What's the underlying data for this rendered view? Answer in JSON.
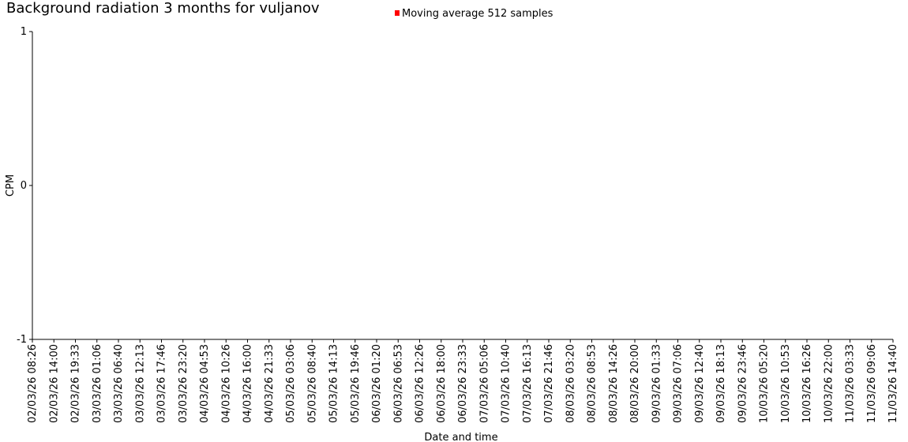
{
  "chart_data": {
    "type": "line",
    "title": "Background radiation 3 months for vuljanov",
    "xlabel": "Date and time",
    "ylabel": "CPM",
    "ylim": [
      -1,
      1
    ],
    "y_ticks": [
      "1",
      "0",
      "-1"
    ],
    "x_ticks": [
      "02/03/26 08:26",
      "02/03/26 14:00",
      "02/03/26 19:33",
      "03/03/26 01:06",
      "03/03/26 06:40",
      "03/03/26 12:13",
      "03/03/26 17:46",
      "03/03/26 23:20",
      "04/03/26 04:53",
      "04/03/26 10:26",
      "04/03/26 16:00",
      "04/03/26 21:33",
      "05/03/26 03:06",
      "05/03/26 08:40",
      "05/03/26 14:13",
      "05/03/26 19:46",
      "06/03/26 01:20",
      "06/03/26 06:53",
      "06/03/26 12:26",
      "06/03/26 18:00",
      "06/03/26 23:33",
      "07/03/26 05:06",
      "07/03/26 10:40",
      "07/03/26 16:13",
      "07/03/26 21:46",
      "08/03/26 03:20",
      "08/03/26 08:53",
      "08/03/26 14:26",
      "08/03/26 20:00",
      "09/03/26 01:33",
      "09/03/26 07:06",
      "09/03/26 12:40",
      "09/03/26 18:13",
      "09/03/26 23:46",
      "10/03/26 05:20",
      "10/03/26 10:53",
      "10/03/26 16:26",
      "10/03/26 22:00",
      "11/03/26 03:33",
      "11/03/26 09:06",
      "11/03/26 14:40"
    ],
    "series": [
      {
        "name": "Moving average 512 samples",
        "color": "#ff0000",
        "values": []
      }
    ],
    "legend": "top-center",
    "grid": false
  }
}
